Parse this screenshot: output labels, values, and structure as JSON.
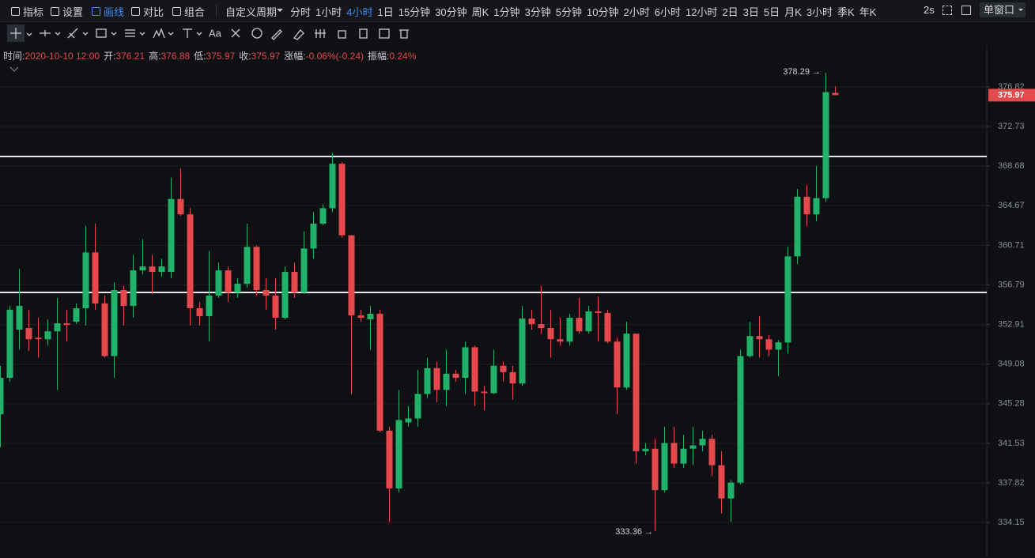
{
  "toolbar": {
    "tools": [
      {
        "label": "指标",
        "active": false
      },
      {
        "label": "设置",
        "active": false
      },
      {
        "label": "画线",
        "active": true
      },
      {
        "label": "对比",
        "active": false
      },
      {
        "label": "组合",
        "active": false
      }
    ],
    "custom_period": "自定义周期",
    "periods": [
      "分时",
      "1小时",
      "4小时",
      "1日",
      "15分钟",
      "30分钟",
      "周K",
      "1分钟",
      "3分钟",
      "5分钟",
      "10分钟",
      "2小时",
      "6小时",
      "12小时",
      "2日",
      "3日",
      "5日",
      "月K",
      "3小时",
      "季K",
      "年K"
    ],
    "active_period": 2,
    "refresh": "2s",
    "window_mode": "单窗口"
  },
  "drawing_toolbar": {
    "text_tool": "Aa"
  },
  "info": [
    {
      "label": "时间:",
      "value": "2020-10-10 12:00"
    },
    {
      "label": "开:",
      "value": "376.21"
    },
    {
      "label": "高:",
      "value": "376.88"
    },
    {
      "label": "低:",
      "value": "375.97"
    },
    {
      "label": "收:",
      "value": "375.97"
    },
    {
      "label": "涨幅:",
      "value": "-0.06%(-0.24)"
    },
    {
      "label": "振幅:",
      "value": "0.24%"
    }
  ],
  "chart_data": {
    "type": "candlestick",
    "log_scale": true,
    "grid": true,
    "up_color": "#1fb268",
    "down_color": "#e5484d",
    "ylim": [
      330.96,
      381.12
    ],
    "yticks": [
      334.15,
      337.82,
      341.53,
      345.28,
      349.08,
      352.91,
      356.79,
      360.71,
      364.67,
      368.68,
      372.73,
      376.82
    ],
    "last_price": 375.97,
    "annotations": [
      {
        "text": "378.29 →"
      },
      {
        "text": "333.36 →"
      }
    ],
    "open": [
      344.27,
      347.76,
      352.41,
      352.57,
      351.63,
      351.48,
      352.25,
      353.03,
      353.18,
      354.5,
      360.0,
      354.97,
      349.85,
      356.28,
      354.73,
      358.22,
      358.61,
      358.07,
      358.07,
      365.35,
      363.8,
      354.5,
      353.72,
      355.74,
      358.22,
      356.05,
      356.9,
      360.55,
      356.28,
      355.74,
      353.57,
      358.07,
      356.05,
      360.39,
      362.87,
      364.42,
      368.92,
      361.71,
      353.8,
      353.42,
      353.96,
      342.72,
      337.3,
      343.5,
      343.88,
      346.21,
      348.69,
      346.6,
      348.15,
      347.76,
      350.7,
      346.44,
      346.29,
      348.92,
      348.3,
      347.22,
      353.49,
      352.95,
      352.57,
      351.48,
      351.25,
      353.57,
      352.25,
      354.19,
      354.03,
      351.25,
      346.83,
      352.02,
      340.78,
      341.02,
      337.14,
      341.56,
      339.62,
      341.02,
      341.33,
      341.95,
      339.47,
      336.37,
      337.84,
      349.85,
      351.79,
      351.48,
      350.47,
      351.17,
      359.61,
      365.58,
      363.8,
      365.43,
      376.21
    ],
    "high": [
      348.92,
      354.73,
      358.37,
      354.35,
      353.57,
      353.42,
      355.51,
      354.35,
      354.97,
      362.64,
      362.87,
      355.74,
      357.06,
      356.67,
      359.77,
      361.32,
      359.77,
      359.38,
      367.52,
      368.45,
      364.42,
      355.12,
      360.16,
      358.99,
      358.61,
      357.45,
      362.87,
      360.7,
      357.45,
      357.45,
      358.61,
      358.99,
      362.1,
      364.03,
      364.81,
      370.0,
      369.07,
      361.71,
      354.35,
      354.73,
      354.35,
      343.11,
      346.6,
      345.05,
      348.53,
      349.7,
      349.31,
      350.47,
      348.53,
      351.25,
      350.86,
      346.98,
      350.47,
      349.31,
      348.92,
      354.73,
      354.35,
      356.67,
      354.35,
      353.57,
      353.96,
      355.51,
      354.73,
      355.66,
      354.35,
      351.63,
      353.18,
      352.02,
      341.56,
      341.95,
      343.11,
      343.11,
      342.33,
      343.11,
      342.72,
      342.33,
      340.78,
      338.07,
      350.47,
      353.18,
      353.72,
      351.86,
      351.4,
      360.55,
      366.36,
      366.75,
      368.68,
      378.29,
      376.88
    ],
    "low": [
      341.17,
      347.37,
      350.47,
      350.32,
      349.7,
      350.86,
      346.6,
      351.25,
      352.95,
      352.8,
      354.35,
      349.7,
      347.76,
      352.8,
      353.57,
      357.83,
      355.9,
      357.6,
      357.45,
      363.65,
      352.8,
      352.8,
      351.25,
      355.51,
      355.12,
      355.51,
      356.52,
      355.74,
      354.35,
      352.41,
      353.42,
      355.51,
      355.9,
      359.38,
      362.72,
      364.03,
      361.47,
      346.21,
      353.18,
      350.47,
      342.57,
      334.19,
      336.91,
      343.11,
      343.11,
      345.82,
      345.43,
      345.05,
      347.37,
      346.21,
      345.05,
      344.66,
      346.21,
      347.37,
      345.66,
      346.98,
      352.41,
      352.02,
      349.7,
      350.86,
      350.86,
      352.02,
      352.02,
      351.25,
      351.09,
      344.27,
      346.6,
      339.62,
      340.4,
      333.36,
      336.91,
      339.23,
      339.23,
      339.47,
      340.78,
      338.46,
      334.97,
      334.19,
      337.68,
      349.7,
      349.7,
      349.85,
      347.91,
      350.08,
      358.84,
      362.64,
      363.1,
      365.04,
      375.97
    ],
    "close": [
      347.76,
      354.35,
      354.73,
      351.48,
      351.48,
      352.25,
      353.03,
      352.87,
      354.5,
      360.0,
      354.97,
      349.85,
      356.28,
      354.73,
      358.22,
      358.61,
      358.07,
      358.61,
      365.35,
      363.8,
      354.5,
      353.72,
      355.74,
      358.22,
      356.05,
      356.9,
      360.55,
      356.28,
      355.74,
      353.57,
      358.07,
      356.05,
      360.39,
      362.87,
      364.42,
      368.92,
      361.71,
      353.8,
      353.57,
      353.96,
      342.72,
      337.3,
      343.73,
      343.88,
      346.21,
      348.69,
      346.6,
      348.15,
      347.76,
      350.7,
      346.44,
      346.29,
      348.92,
      348.3,
      347.22,
      353.49,
      352.95,
      352.57,
      351.48,
      351.25,
      353.57,
      352.25,
      354.19,
      354.03,
      351.25,
      346.83,
      352.02,
      340.78,
      341.02,
      337.14,
      341.56,
      339.62,
      341.02,
      341.33,
      341.95,
      339.47,
      336.37,
      337.84,
      349.85,
      351.79,
      351.48,
      350.47,
      351.17,
      359.61,
      365.58,
      363.8,
      365.43,
      376.28,
      375.97
    ]
  }
}
